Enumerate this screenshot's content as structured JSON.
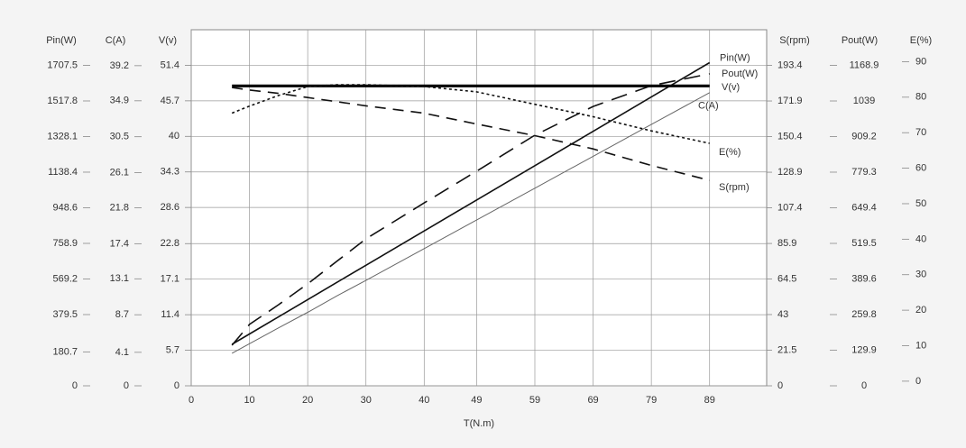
{
  "chart_data": {
    "type": "line",
    "xlabel": "T(N.m)",
    "xlim": [
      0,
      98.8
    ],
    "xticks": [
      0,
      10,
      20,
      30,
      40,
      49,
      59,
      69,
      79,
      89
    ],
    "grid": true,
    "x": [
      7,
      10,
      15,
      20,
      25,
      30,
      40,
      49,
      59,
      69,
      79,
      89
    ],
    "axes": [
      {
        "label": "Pin(W)",
        "side": "left",
        "ylim": [
          0,
          1897.2
        ],
        "yticks": [
          0,
          180.7,
          379.5,
          569.2,
          758.9,
          948.6,
          1138.4,
          1328.1,
          1517.8,
          1707.5
        ]
      },
      {
        "label": "C(A)",
        "side": "left",
        "ylim": [
          0,
          43.6
        ],
        "yticks": [
          0,
          4.1,
          8.7,
          13.1,
          17.4,
          21.8,
          26.1,
          30.5,
          34.9,
          39.2
        ]
      },
      {
        "label": "V(v)",
        "side": "left",
        "ylim": [
          0,
          57.1
        ],
        "yticks": [
          0,
          5.7,
          11.4,
          17.1,
          22.8,
          28.6,
          34.3,
          40,
          45.7,
          51.4
        ]
      },
      {
        "label": "S(rpm)",
        "side": "right",
        "ylim": [
          0,
          214.9
        ],
        "yticks": [
          0,
          21.5,
          43,
          64.5,
          85.9,
          107.4,
          128.9,
          150.4,
          171.9,
          193.4
        ]
      },
      {
        "label": "Pout(W)",
        "side": "right",
        "ylim": [
          0,
          1298.8
        ],
        "yticks": [
          0,
          129.9,
          259.8,
          389.6,
          519.5,
          649.4,
          779.3,
          909.2,
          1039,
          1168.9
        ]
      },
      {
        "label": "E(%)",
        "side": "right",
        "ylim": [
          -1.3,
          99
        ],
        "yticks": [
          0,
          10,
          20,
          30,
          40,
          50,
          60,
          70,
          80,
          90
        ]
      }
    ],
    "series": [
      {
        "name": "Pin(W)",
        "axis": 0,
        "color": "#111111",
        "width": 1.6,
        "dash": "none",
        "values": [
          221,
          276,
          368,
          459,
          551,
          642,
          825,
          990,
          1173,
          1356,
          1539,
          1722
        ]
      },
      {
        "name": "Pout(W)",
        "axis": 4,
        "color": "#111111",
        "width": 1.6,
        "dash": "18,10",
        "values": [
          148,
          224,
          296,
          372,
          454,
          536,
          667,
          783,
          914,
          1019,
          1095,
          1138
        ]
      },
      {
        "name": "V(v)",
        "axis": 2,
        "color": "#000000",
        "width": 3.2,
        "dash": "none",
        "values": [
          48.1,
          48.1,
          48.1,
          48.1,
          48.1,
          48.1,
          48.1,
          48.1,
          48.1,
          48.1,
          48.1,
          48.1
        ]
      },
      {
        "name": "C(A)",
        "axis": 1,
        "color": "#666666",
        "width": 1,
        "dash": "none",
        "values": [
          3.98,
          5.15,
          7.1,
          9.0,
          11.0,
          12.9,
          16.8,
          20.3,
          24.2,
          28.1,
          32.0,
          35.9
        ]
      },
      {
        "name": "E(%)",
        "axis": 5,
        "color": "#111111",
        "width": 1.6,
        "dash": "3,3",
        "values": [
          75.5,
          77.5,
          80.5,
          83,
          83.5,
          83.5,
          83,
          81.5,
          78,
          74.5,
          70.5,
          67
        ]
      },
      {
        "name": "S(rpm)",
        "axis": 3,
        "color": "#111111",
        "width": 1.6,
        "dash": "12,8",
        "values": [
          180,
          178.5,
          176.5,
          174,
          171.5,
          169,
          164.5,
          158,
          151,
          143,
          133,
          124
        ]
      }
    ]
  }
}
